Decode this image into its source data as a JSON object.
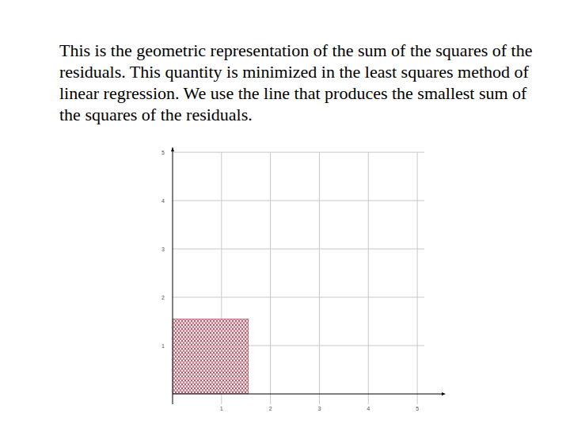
{
  "chart_data": {
    "type": "square",
    "title": "This is the geometric representation of the sum of the squares of the residuals.  This quantity is minimized in the least squares method of linear regression. We use the line that produces the smallest sum of the squares of the residuals.",
    "squares": [
      {
        "x0": 0,
        "y0": 0,
        "x1": 1.55,
        "y1": 1.55
      }
    ],
    "color": "#a0283c",
    "xlim": [
      0,
      5.5
    ],
    "ylim": [
      0,
      5.1
    ],
    "xticks": [
      1,
      2,
      3,
      4,
      5
    ],
    "yticks": [
      1,
      2,
      3,
      4,
      5
    ],
    "grid": true
  }
}
